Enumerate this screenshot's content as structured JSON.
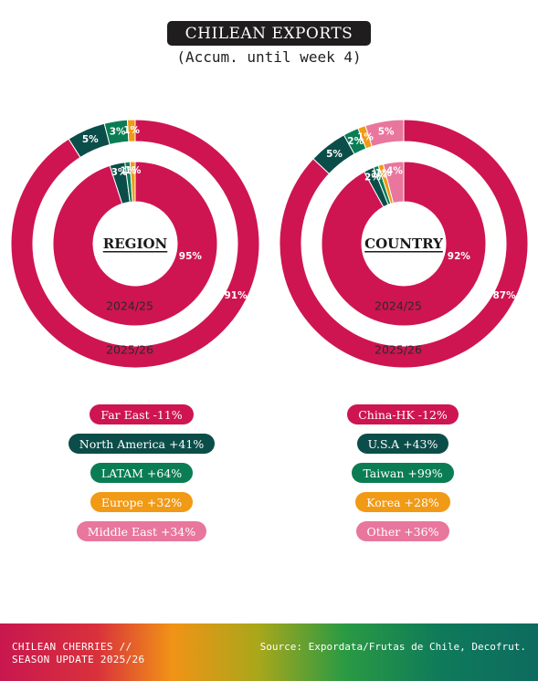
{
  "header": {
    "title": "CHILEAN EXPORTS",
    "subtitle": "(Accum. until week 4)"
  },
  "chart_data": [
    {
      "type": "pie",
      "variant": "nested-donut",
      "center_label": "REGION",
      "categories": [
        "Far East",
        "North America",
        "LATAM",
        "Europe",
        "Middle East"
      ],
      "colors": [
        "#ce1551",
        "#0b4d49",
        "#0b7d55",
        "#f19a16",
        "#e9769c"
      ],
      "series": [
        {
          "name": "2025/26",
          "ring": "outer",
          "values": [
            91,
            5,
            3,
            1,
            0
          ],
          "labels": [
            "91%",
            "5%",
            "3%",
            "1%",
            ""
          ]
        },
        {
          "name": "2024/25",
          "ring": "inner",
          "values": [
            95,
            3,
            1,
            1,
            0
          ],
          "labels": [
            "95%",
            "3%",
            "1%",
            "1%",
            ""
          ]
        }
      ],
      "legend": [
        {
          "label": "Far East -11%",
          "color": "#ce1551"
        },
        {
          "label": "North America +41%",
          "color": "#0b4d49"
        },
        {
          "label": "LATAM +64%",
          "color": "#0b7d55"
        },
        {
          "label": "Europe +32%",
          "color": "#f19a16"
        },
        {
          "label": "Middle East +34%",
          "color": "#e9769c"
        }
      ]
    },
    {
      "type": "pie",
      "variant": "nested-donut",
      "center_label": "COUNTRY",
      "categories": [
        "China-HK",
        "U.S.A",
        "Taiwan",
        "Korea",
        "Other"
      ],
      "colors": [
        "#ce1551",
        "#0b4d49",
        "#0b7d55",
        "#f19a16",
        "#e9769c"
      ],
      "series": [
        {
          "name": "2025/26",
          "ring": "outer",
          "values": [
            87,
            5,
            2,
            1,
            5
          ],
          "labels": [
            "87%",
            "5%",
            "2%",
            "1%",
            "5%"
          ]
        },
        {
          "name": "2024/25",
          "ring": "inner",
          "values": [
            92,
            2,
            1,
            1,
            4
          ],
          "labels": [
            "92%",
            "2%",
            "1%",
            "1%",
            "4%"
          ]
        }
      ],
      "legend": [
        {
          "label": "China-HK -12%",
          "color": "#ce1551"
        },
        {
          "label": "U.S.A +43%",
          "color": "#0b4d49"
        },
        {
          "label": "Taiwan +99%",
          "color": "#0b7d55"
        },
        {
          "label": "Korea +28%",
          "color": "#f19a16"
        },
        {
          "label": "Other +36%",
          "color": "#e9769c"
        }
      ]
    }
  ],
  "footer": {
    "line1": "CHILEAN CHERRIES //",
    "line2": "SEASON UPDATE 2025/26",
    "source": "Source: Expordata/Frutas de Chile, Decofrut."
  }
}
